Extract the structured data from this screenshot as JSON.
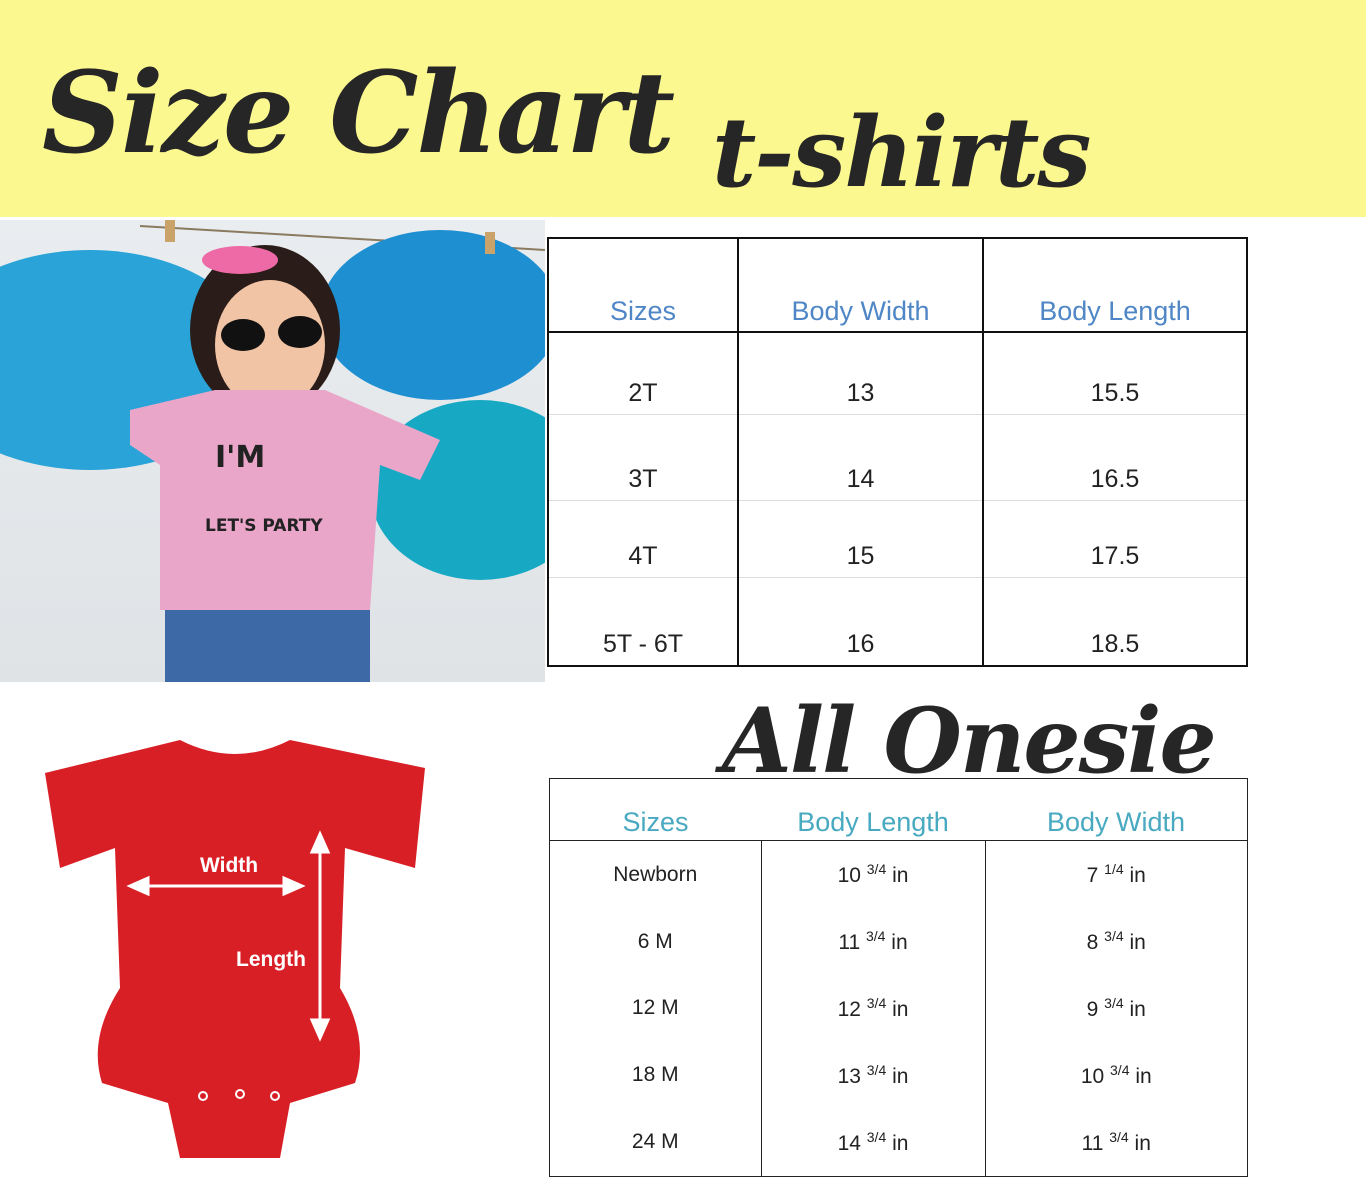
{
  "header": {
    "title": "Size Chart",
    "subtitle": "t-shirts",
    "background": "#fcf890"
  },
  "tshirt_photo": {
    "shirt_text_line1": "I'M",
    "shirt_text_line2": "LET'S PARTY"
  },
  "tshirt_table": {
    "headers": [
      "Sizes",
      "Body Width",
      "Body Length"
    ],
    "rows": [
      [
        "2T",
        "13",
        "15.5"
      ],
      [
        "3T",
        "14",
        "16.5"
      ],
      [
        "4T",
        "15",
        "17.5"
      ],
      [
        "5T - 6T",
        "16",
        "18.5"
      ]
    ],
    "header_color": "#4f86c6"
  },
  "onesie": {
    "title": "All Onesie",
    "diagram": {
      "width_label": "Width",
      "length_label": "Length",
      "color": "#d81f26"
    },
    "headers": [
      "Sizes",
      "Body Length",
      "Body Width"
    ],
    "rows": [
      {
        "size": "Newborn",
        "length": {
          "whole": "10",
          "frac": "3/4",
          "unit": "in"
        },
        "width": {
          "whole": "7",
          "frac": "1/4",
          "unit": "in"
        }
      },
      {
        "size": "6 M",
        "length": {
          "whole": "11",
          "frac": "3/4",
          "unit": "in"
        },
        "width": {
          "whole": "8",
          "frac": "3/4",
          "unit": "in"
        }
      },
      {
        "size": "12 M",
        "length": {
          "whole": "12",
          "frac": "3/4",
          "unit": "in"
        },
        "width": {
          "whole": "9",
          "frac": "3/4",
          "unit": "in"
        }
      },
      {
        "size": "18 M",
        "length": {
          "whole": "13",
          "frac": "3/4",
          "unit": "in"
        },
        "width": {
          "whole": "10",
          "frac": "3/4",
          "unit": "in"
        }
      },
      {
        "size": "24 M",
        "length": {
          "whole": "14",
          "frac": "3/4",
          "unit": "in"
        },
        "width": {
          "whole": "11",
          "frac": "3/4",
          "unit": "in"
        }
      }
    ],
    "header_color": "#48a9c0"
  }
}
